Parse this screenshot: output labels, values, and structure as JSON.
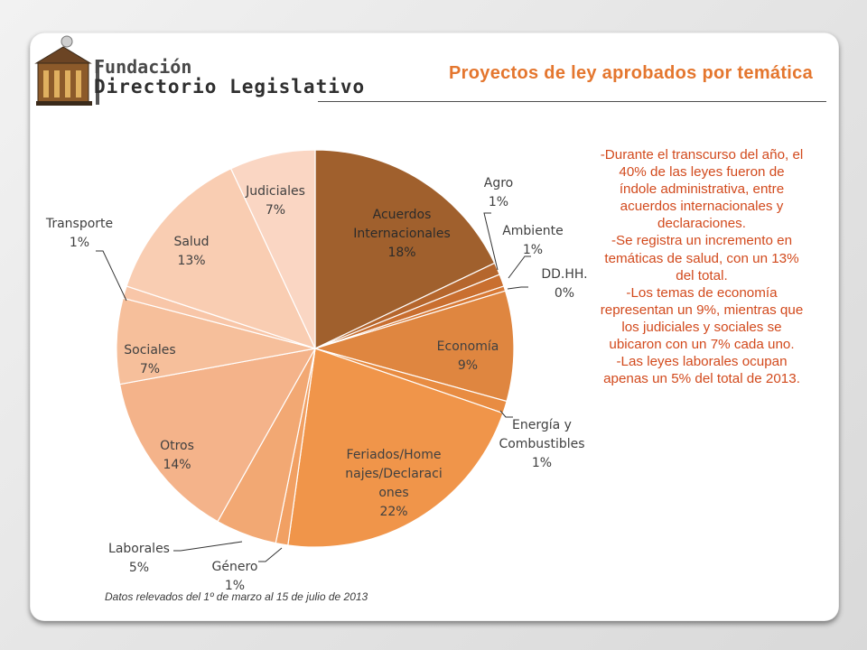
{
  "header": {
    "logo_line1": "Fundación",
    "logo_line2": "Directorio Legislativo",
    "title": "Proyectos de ley aprobados por temática"
  },
  "chart_data": {
    "type": "pie",
    "title": "Proyectos de ley aprobados por temática",
    "start_angle_deg": 0,
    "direction": "clockwise",
    "slices": [
      {
        "name": "Acuerdos Internacionales",
        "label": [
          "Acuerdos",
          "Internacionales",
          "18%"
        ],
        "value": 18,
        "color": "#a0602d"
      },
      {
        "name": "Agro",
        "label": [
          "Agro",
          "1%"
        ],
        "value": 1,
        "color": "#b5662d"
      },
      {
        "name": "Ambiente",
        "label": [
          "Ambiente",
          "1%"
        ],
        "value": 1,
        "color": "#c96f30"
      },
      {
        "name": "DD.HH.",
        "label": [
          "DD.HH.",
          "0%"
        ],
        "value": 0.4,
        "color": "#d87a36"
      },
      {
        "name": "Economía",
        "label": [
          "Economía",
          "9%"
        ],
        "value": 9,
        "color": "#df8640"
      },
      {
        "name": "Energía y Combustibles",
        "label": [
          "Energía y",
          "Combustibles",
          "1%"
        ],
        "value": 1,
        "color": "#e88c42"
      },
      {
        "name": "Feriados/Homenajes/Declaraciones",
        "label": [
          "Feriados/Home",
          "najes/Declaraci",
          "ones",
          "22%"
        ],
        "value": 22,
        "color": "#f0954a"
      },
      {
        "name": "Género",
        "label": [
          "Género",
          "1%"
        ],
        "value": 1,
        "color": "#f1a063"
      },
      {
        "name": "Laborales",
        "label": [
          "Laborales",
          "5%"
        ],
        "value": 5,
        "color": "#f2a873"
      },
      {
        "name": "Otros",
        "label": [
          "Otros",
          "14%"
        ],
        "value": 14,
        "color": "#f4b38a"
      },
      {
        "name": "Sociales",
        "label": [
          "Sociales",
          "7%"
        ],
        "value": 7,
        "color": "#f6bf9b"
      },
      {
        "name": "Transporte",
        "label": [
          "Transporte",
          "1%"
        ],
        "value": 1,
        "color": "#f8c6a8"
      },
      {
        "name": "Salud",
        "label": [
          "Salud",
          "13%"
        ],
        "value": 13,
        "color": "#f9cdb2"
      },
      {
        "name": "Judiciales",
        "label": [
          "Judiciales",
          "7%"
        ],
        "value": 7,
        "color": "#fad6c3"
      }
    ]
  },
  "notes": [
    "-Durante el transcurso del año, el 40% de las leyes fueron de índole administrativa, entre acuerdos internacionales y declaraciones.",
    "-Se registra un incremento en temáticas de salud, con un 13% del total.",
    "-Los temas de economía representan un 9%, mientras que los judiciales  y sociales se ubicaron con un 7% cada uno.",
    "-Las leyes laborales ocupan apenas un 5% del total de 2013."
  ],
  "footnote": "Datos relevados del 1º de marzo al 15 de julio de 2013"
}
